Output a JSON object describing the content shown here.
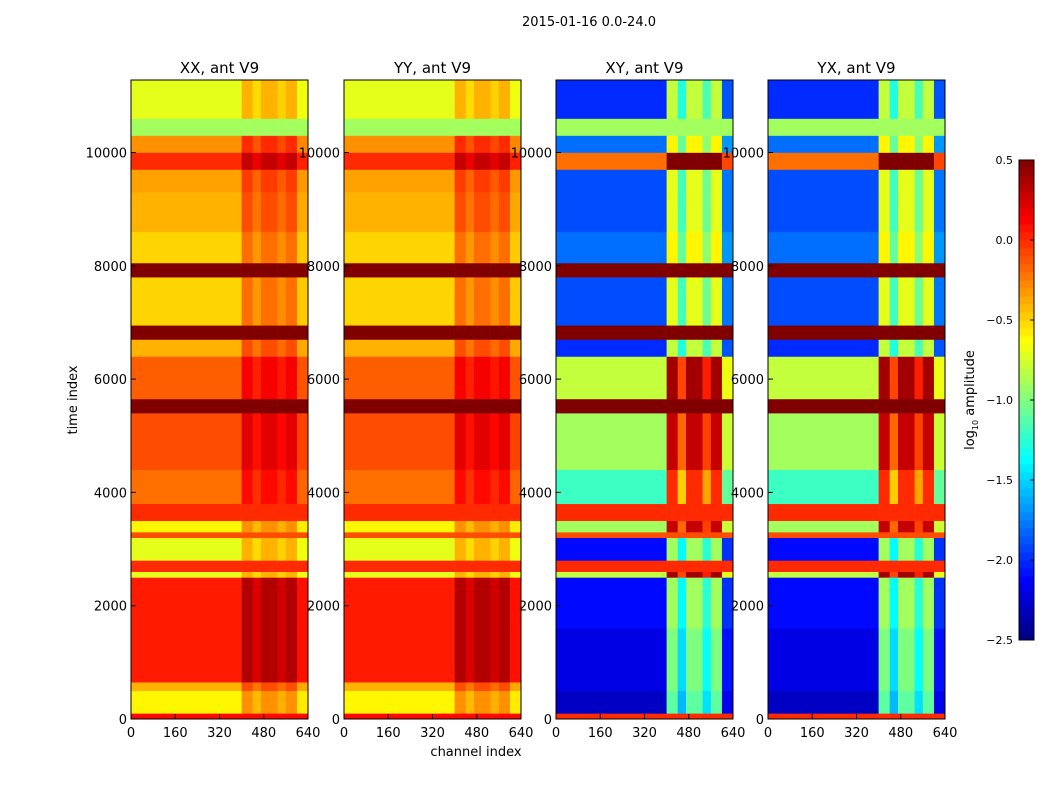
{
  "chart_data": {
    "type": "heatmap",
    "title": "2015-01-16 0.0-24.0",
    "xlabel": "channel index",
    "ylabel": "time index",
    "xlim": [
      0,
      640
    ],
    "ylim": [
      0,
      11280
    ],
    "xticks": [
      "0",
      "160",
      "320",
      "480",
      "640"
    ],
    "yticks": [
      "0",
      "2000",
      "4000",
      "6000",
      "8000",
      "10000"
    ],
    "panels": [
      {
        "title": "XX, ant V9",
        "kind": "parallel"
      },
      {
        "title": "YY, ant V9",
        "kind": "parallel"
      },
      {
        "title": "XY, ant V9",
        "kind": "cross"
      },
      {
        "title": "YX, ant V9",
        "kind": "cross"
      }
    ],
    "colorbar": {
      "label_prefix": "log",
      "label_sub": "10",
      "label_suffix": " amplitude",
      "range": [
        -2.5,
        0.5
      ],
      "ticks": [
        "0.5",
        "0.0",
        "−0.5",
        "−1.0",
        "−1.5",
        "−2.0",
        "−2.5"
      ],
      "colormap": "jet"
    },
    "time_bands": [
      {
        "t0": 0,
        "t1": 100,
        "parallel": 0.1,
        "cross": 0.0,
        "flag": true
      },
      {
        "t0": 100,
        "t1": 500,
        "parallel": -0.6,
        "cross": -2.3
      },
      {
        "t0": 500,
        "t1": 650,
        "parallel": -0.4,
        "cross": -2.2
      },
      {
        "t0": 650,
        "t1": 1600,
        "parallel": 0.05,
        "cross": -2.2
      },
      {
        "t0": 1600,
        "t1": 2500,
        "parallel": 0.05,
        "cross": -2.1
      },
      {
        "t0": 2500,
        "t1": 2600,
        "parallel": -0.7,
        "cross": -0.8
      },
      {
        "t0": 2600,
        "t1": 2800,
        "parallel": 0.0,
        "cross": 0.0,
        "flag": true
      },
      {
        "t0": 2800,
        "t1": 3200,
        "parallel": -0.7,
        "cross": -2.1
      },
      {
        "t0": 3200,
        "t1": 3300,
        "parallel": -0.1,
        "cross": -0.1,
        "flag": true
      },
      {
        "t0": 3300,
        "t1": 3500,
        "parallel": -0.6,
        "cross": -0.9
      },
      {
        "t0": 3500,
        "t1": 3800,
        "parallel": 0.0,
        "cross": 0.0,
        "flag": true
      },
      {
        "t0": 3800,
        "t1": 4400,
        "parallel": -0.2,
        "cross": -1.2
      },
      {
        "t0": 4400,
        "t1": 5400,
        "parallel": -0.1,
        "cross": -0.9
      },
      {
        "t0": 5400,
        "t1": 5650,
        "parallel": 0.5,
        "cross": 0.5,
        "flag": true
      },
      {
        "t0": 5650,
        "t1": 6400,
        "parallel": -0.15,
        "cross": -0.8
      },
      {
        "t0": 6400,
        "t1": 6700,
        "parallel": -0.4,
        "cross": -2.0
      },
      {
        "t0": 6700,
        "t1": 6950,
        "parallel": 0.5,
        "cross": 0.5,
        "flag": true
      },
      {
        "t0": 6950,
        "t1": 7800,
        "parallel": -0.5,
        "cross": -1.9
      },
      {
        "t0": 7800,
        "t1": 8050,
        "parallel": 0.5,
        "cross": 0.5,
        "flag": true
      },
      {
        "t0": 8050,
        "t1": 8600,
        "parallel": -0.5,
        "cross": -1.8
      },
      {
        "t0": 8600,
        "t1": 9300,
        "parallel": -0.4,
        "cross": -1.9
      },
      {
        "t0": 9300,
        "t1": 9700,
        "parallel": -0.35,
        "cross": -1.9
      },
      {
        "t0": 9700,
        "t1": 10000,
        "parallel": 0.0,
        "cross": -0.2
      },
      {
        "t0": 10000,
        "t1": 10300,
        "parallel": -0.3,
        "cross": -1.8
      },
      {
        "t0": 10300,
        "t1": 10600,
        "parallel": -0.9,
        "cross": -0.9,
        "flag": true
      },
      {
        "t0": 10600,
        "t1": 11280,
        "parallel": -0.7,
        "cross": -2.0
      }
    ],
    "channel_boost": [
      {
        "c0": 0,
        "c1": 400,
        "factor": 0
      },
      {
        "c0": 400,
        "c1": 440,
        "factor": 1
      },
      {
        "c0": 440,
        "c1": 470,
        "factor": 0.6
      },
      {
        "c0": 470,
        "c1": 530,
        "factor": 1
      },
      {
        "c0": 530,
        "c1": 560,
        "factor": 0.7
      },
      {
        "c0": 560,
        "c1": 600,
        "factor": 1
      },
      {
        "c0": 600,
        "c1": 640,
        "factor": 0.1
      }
    ],
    "boost_amount": {
      "parallel": 0.3,
      "cross": 1.2
    }
  }
}
